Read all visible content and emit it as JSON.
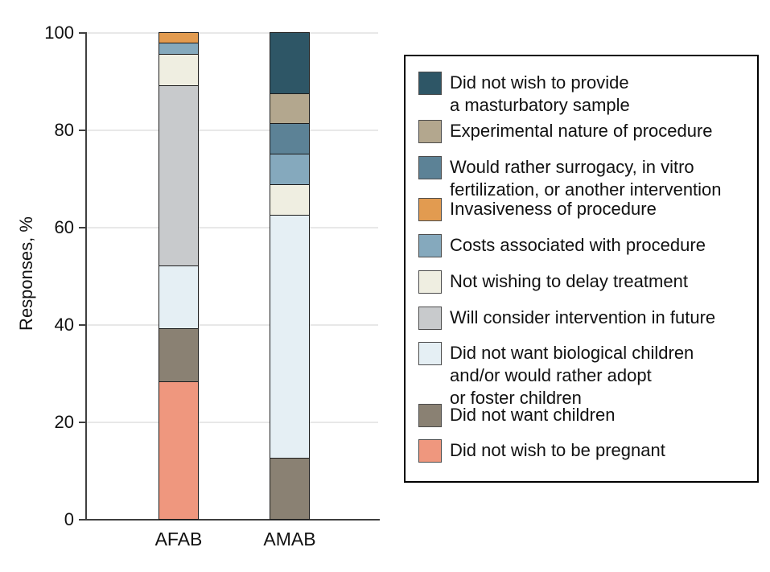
{
  "chart_data": {
    "type": "bar",
    "subtype": "stacked-vertical",
    "title": "",
    "xlabel": "",
    "ylabel": "Responses, %",
    "ylim": [
      0,
      100
    ],
    "yticks": [
      0,
      20,
      40,
      60,
      80,
      100
    ],
    "grid": true,
    "legend_position": "right",
    "categories": [
      "AFAB",
      "AMAB"
    ],
    "series": [
      {
        "name": "Did not wish to be pregnant",
        "color": "#EF977E",
        "values": [
          28.3,
          0
        ]
      },
      {
        "name": "Did not want children",
        "color": "#8A8173",
        "values": [
          10.9,
          12.5
        ]
      },
      {
        "name": "Did not want biological children and/or would rather adopt or foster children",
        "color": "#E5EFF4",
        "values": [
          13.0,
          50.0
        ]
      },
      {
        "name": "Will consider intervention in future",
        "color": "#C8CACC",
        "values": [
          37.0,
          0
        ]
      },
      {
        "name": "Not wishing to delay treatment",
        "color": "#EFEEE1",
        "values": [
          6.5,
          6.25
        ]
      },
      {
        "name": "Costs associated with procedure",
        "color": "#85A9BD",
        "values": [
          2.2,
          6.25
        ]
      },
      {
        "name": "Invasiveness of procedure",
        "color": "#E29B50",
        "values": [
          2.2,
          0
        ]
      },
      {
        "name": "Would rather surrogacy, in vitro fertilization, or another intervention",
        "color": "#5C8296",
        "values": [
          0,
          6.25
        ]
      },
      {
        "name": "Experimental nature of procedure",
        "color": "#B3A78E",
        "values": [
          0,
          6.25
        ]
      },
      {
        "name": "Did not wish to provide a masturbatory sample",
        "color": "#2E5666",
        "values": [
          0,
          12.5
        ]
      }
    ]
  },
  "legend": {
    "items": [
      {
        "color": "#2E5666",
        "label_lines": [
          "Did not wish to provide",
          "a masturbatory sample"
        ]
      },
      {
        "color": "#B3A78E",
        "label_lines": [
          "Experimental nature of procedure"
        ]
      },
      {
        "color": "#5C8296",
        "label_lines": [
          "Would rather surrogacy, in vitro",
          "fertilization, or another intervention"
        ]
      },
      {
        "color": "#E29B50",
        "label_lines": [
          "Invasiveness of procedure"
        ]
      },
      {
        "color": "#85A9BD",
        "label_lines": [
          "Costs associated with procedure"
        ]
      },
      {
        "color": "#EFEEE1",
        "label_lines": [
          "Not wishing to delay treatment"
        ]
      },
      {
        "color": "#C8CACC",
        "label_lines": [
          "Will consider intervention in future"
        ]
      },
      {
        "color": "#E5EFF4",
        "label_lines": [
          "Did not want biological children",
          "and/or would rather adopt",
          "or foster children"
        ]
      },
      {
        "color": "#8A8173",
        "label_lines": [
          "Did not want children"
        ]
      },
      {
        "color": "#EF977E",
        "label_lines": [
          "Did not wish to be pregnant"
        ]
      }
    ]
  }
}
